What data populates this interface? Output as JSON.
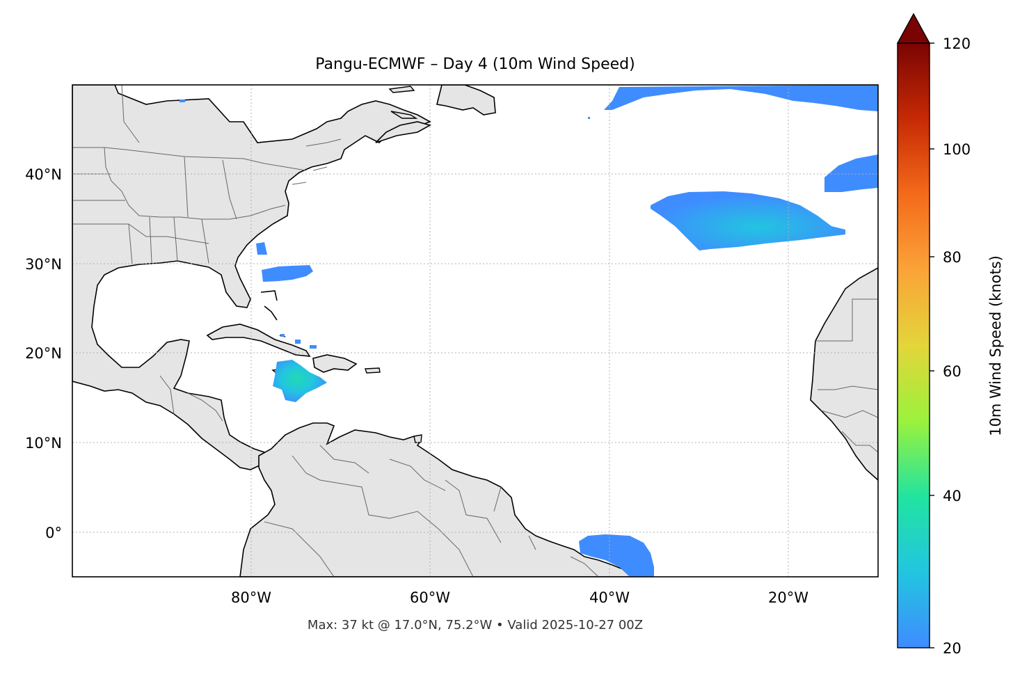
{
  "title": "Pangu-ECMWF – Day 4 (10m Wind Speed)",
  "footer": "Max: 37 kt @ 17.0°N, 75.2°W • Valid 2025-10-27 00Z",
  "colorbar": {
    "label": "10m Wind Speed (knots)",
    "ticks": [
      "20",
      "40",
      "60",
      "80",
      "100",
      "120"
    ],
    "min": 20,
    "max": 120,
    "colors": [
      "#3f8cff",
      "#22c5e0",
      "#21e4a0",
      "#9bf23c",
      "#e3d53a",
      "#fba338",
      "#f46a1a",
      "#c62a05",
      "#7a0403"
    ]
  },
  "map": {
    "lon_range": [
      -100,
      -10
    ],
    "lat_range": [
      -5,
      50
    ],
    "x_ticks": [
      "80°W",
      "60°W",
      "40°W",
      "20°W"
    ],
    "y_ticks": [
      "40°N",
      "30°N",
      "20°N",
      "10°N",
      "0°"
    ],
    "land_color": "#e5e5e5",
    "ocean_color": "#ffffff",
    "wind_color": "#3f8cff",
    "wind_peak_color": "#22c5e0"
  }
}
